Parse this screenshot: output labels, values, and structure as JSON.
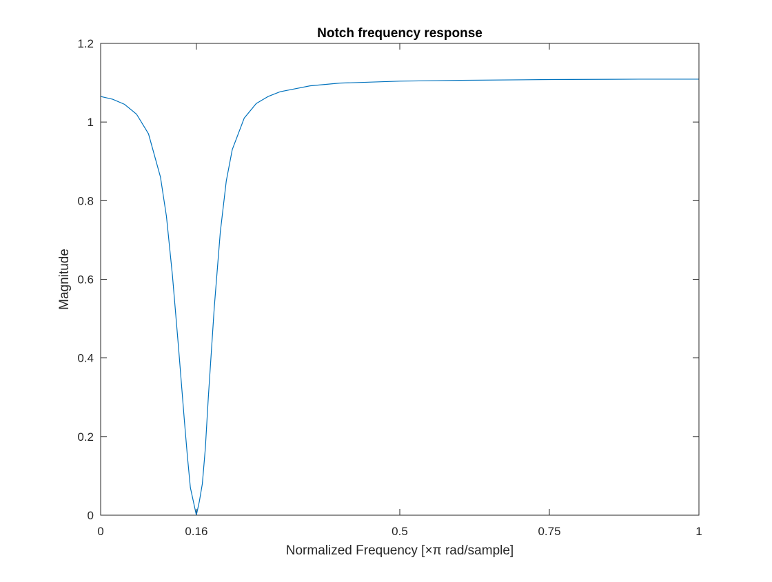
{
  "chart_data": {
    "type": "line",
    "title": "Notch frequency response",
    "xlabel": "Normalized Frequency [×π rad/sample]",
    "ylabel": "Magnitude",
    "xlim": [
      0,
      1
    ],
    "ylim": [
      0,
      1.2
    ],
    "xticks": [
      0,
      0.16,
      0.5,
      0.75,
      1
    ],
    "xtick_labels": [
      "0",
      "0.16",
      "0.5",
      "0.75",
      "1"
    ],
    "yticks": [
      0,
      0.2,
      0.4,
      0.6,
      0.8,
      1,
      1.2
    ],
    "ytick_labels": [
      "0",
      "0.2",
      "0.4",
      "0.6",
      "0.8",
      "1",
      "1.2"
    ],
    "grid": false,
    "line_color": "#0072bd",
    "series": [
      {
        "x": [
          0,
          0.02,
          0.04,
          0.06,
          0.08,
          0.1,
          0.11,
          0.12,
          0.13,
          0.14,
          0.145,
          0.15,
          0.155,
          0.16,
          0.165,
          0.17,
          0.175,
          0.18,
          0.19,
          0.2,
          0.21,
          0.22,
          0.24,
          0.26,
          0.28,
          0.3,
          0.35,
          0.4,
          0.5,
          0.6,
          0.75,
          0.9,
          1
        ],
        "y": [
          1.065,
          1.058,
          1.045,
          1.02,
          0.97,
          0.86,
          0.76,
          0.61,
          0.43,
          0.24,
          0.15,
          0.07,
          0.035,
          0.0,
          0.035,
          0.08,
          0.17,
          0.3,
          0.53,
          0.72,
          0.85,
          0.93,
          1.01,
          1.047,
          1.065,
          1.077,
          1.092,
          1.099,
          1.104,
          1.106,
          1.108,
          1.109,
          1.109
        ]
      }
    ]
  }
}
